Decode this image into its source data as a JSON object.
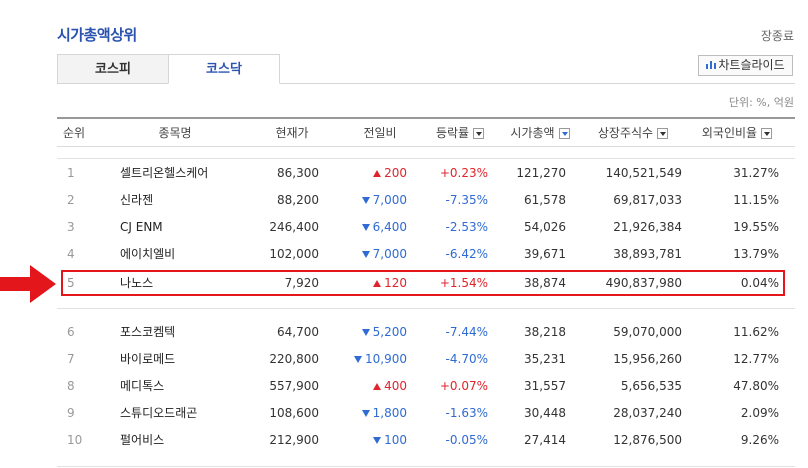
{
  "header": {
    "title": "시가총액상위",
    "status_link": "장종료"
  },
  "tabs": [
    {
      "label": "코스피"
    },
    {
      "label": "코스닥"
    }
  ],
  "chart_slide_label": "차트슬라이드",
  "unit_note": "단위: %, 억원",
  "columns": {
    "rank": "순위",
    "name": "종목명",
    "price": "현재가",
    "change": "전일비",
    "rate": "등락률",
    "market_cap": "시가총액",
    "shares": "상장주식수",
    "foreign_ratio": "외국인비율"
  },
  "rows": [
    {
      "rank": "1",
      "name": "셀트리온헬스케어",
      "price": "86,300",
      "dir": "up",
      "change": "200",
      "rate": "+0.23%",
      "market_cap": "121,270",
      "shares": "140,521,549",
      "foreign_ratio": "31.27%"
    },
    {
      "rank": "2",
      "name": "신라젠",
      "price": "88,200",
      "dir": "down",
      "change": "7,000",
      "rate": "-7.35%",
      "market_cap": "61,578",
      "shares": "69,817,033",
      "foreign_ratio": "11.15%"
    },
    {
      "rank": "3",
      "name": "CJ ENM",
      "price": "246,400",
      "dir": "down",
      "change": "6,400",
      "rate": "-2.53%",
      "market_cap": "54,026",
      "shares": "21,926,384",
      "foreign_ratio": "19.55%"
    },
    {
      "rank": "4",
      "name": "에이치엘비",
      "price": "102,000",
      "dir": "down",
      "change": "7,000",
      "rate": "-6.42%",
      "market_cap": "39,671",
      "shares": "38,893,781",
      "foreign_ratio": "13.79%"
    },
    {
      "rank": "5",
      "name": "나노스",
      "price": "7,920",
      "dir": "up",
      "change": "120",
      "rate": "+1.54%",
      "market_cap": "38,874",
      "shares": "490,837,980",
      "foreign_ratio": "0.04%"
    },
    {
      "rank": "6",
      "name": "포스코켐텍",
      "price": "64,700",
      "dir": "down",
      "change": "5,200",
      "rate": "-7.44%",
      "market_cap": "38,218",
      "shares": "59,070,000",
      "foreign_ratio": "11.62%"
    },
    {
      "rank": "7",
      "name": "바이로메드",
      "price": "220,800",
      "dir": "down",
      "change": "10,900",
      "rate": "-4.70%",
      "market_cap": "35,231",
      "shares": "15,956,260",
      "foreign_ratio": "12.77%"
    },
    {
      "rank": "8",
      "name": "메디톡스",
      "price": "557,900",
      "dir": "up",
      "change": "400",
      "rate": "+0.07%",
      "market_cap": "31,557",
      "shares": "5,656,535",
      "foreign_ratio": "47.80%"
    },
    {
      "rank": "9",
      "name": "스튜디오드래곤",
      "price": "108,600",
      "dir": "down",
      "change": "1,800",
      "rate": "-1.63%",
      "market_cap": "30,448",
      "shares": "28,037,240",
      "foreign_ratio": "2.09%"
    },
    {
      "rank": "10",
      "name": "펄어비스",
      "price": "212,900",
      "dir": "down",
      "change": "100",
      "rate": "-0.05%",
      "market_cap": "27,414",
      "shares": "12,876,500",
      "foreign_ratio": "9.26%"
    }
  ],
  "colors": {
    "up": "#e0242b",
    "down": "#2f6bd3",
    "title": "#2b54b0",
    "highlight": "#e3161c"
  }
}
